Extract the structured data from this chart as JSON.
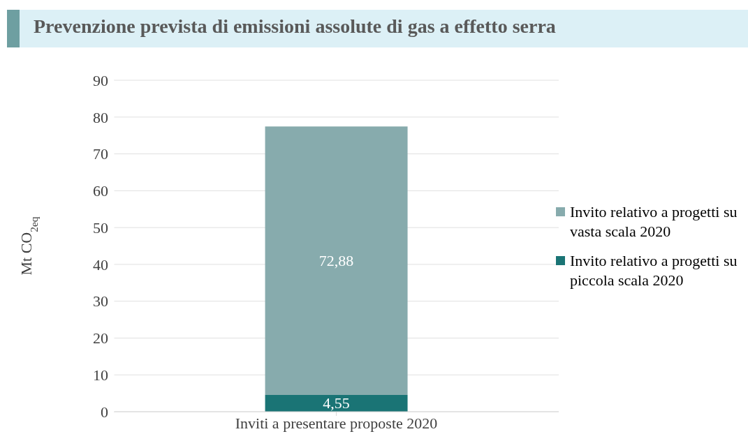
{
  "chart_data": {
    "type": "bar",
    "title": "Prevenzione prevista di emissioni assolute di gas a effetto serra",
    "ylabel": "Mt CO$_{2eq}$",
    "categories": [
      "Inviti a presentare proposte 2020"
    ],
    "stacked": true,
    "series": [
      {
        "name": "Invito relativo a progetti su piccola scala 2020",
        "color": "#1a7475",
        "values": [
          4.55
        ],
        "value_labels": [
          "4,55"
        ]
      },
      {
        "name": "Invito relativo a progetti su vasta scala 2020",
        "color": "#87abad",
        "values": [
          72.88
        ],
        "value_labels": [
          "72,88"
        ]
      }
    ],
    "ylim": [
      0,
      90
    ],
    "yticks": [
      0,
      10,
      20,
      30,
      40,
      50,
      60,
      70,
      80,
      90
    ],
    "grid": "y",
    "legend": "right"
  }
}
